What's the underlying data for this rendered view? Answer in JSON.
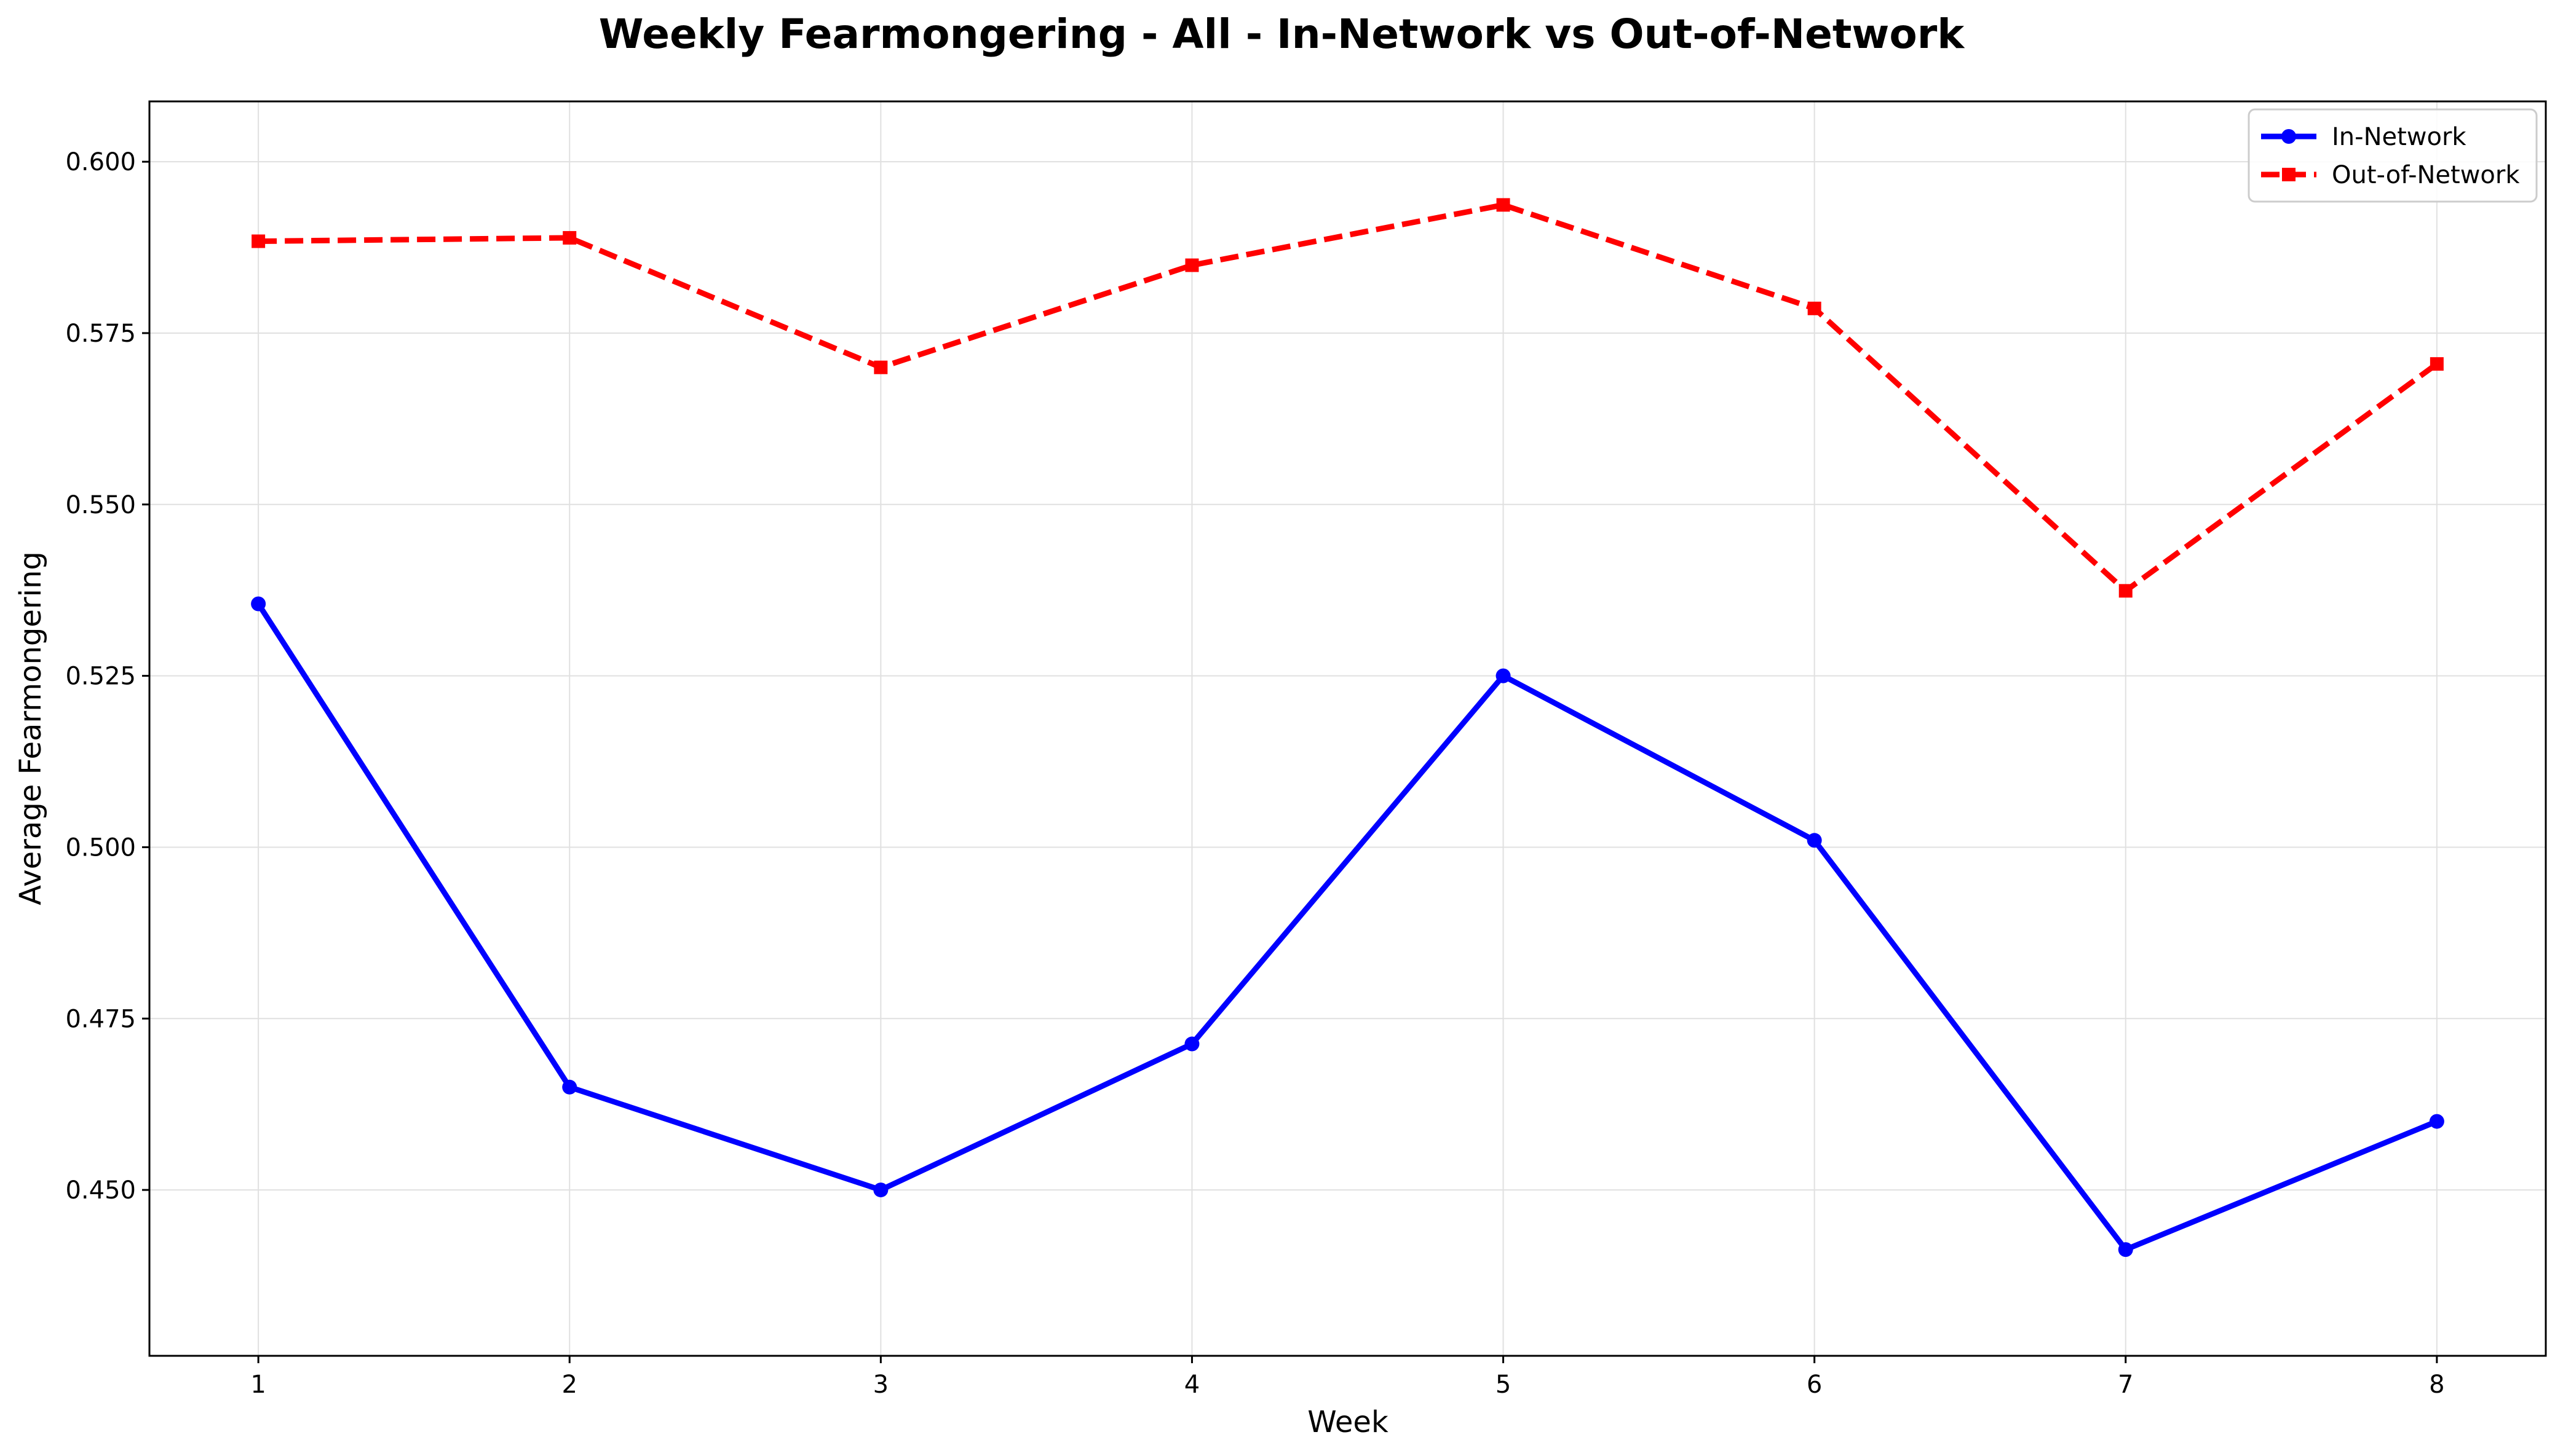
{
  "chart_data": {
    "type": "line",
    "title": "Weekly Fearmongering - All - In-Network vs Out-of-Network",
    "xlabel": "Week",
    "ylabel": "Average Fearmongering",
    "x": [
      1,
      2,
      3,
      4,
      5,
      6,
      7,
      8
    ],
    "x_ticks": [
      "1",
      "2",
      "3",
      "4",
      "5",
      "6",
      "7",
      "8"
    ],
    "xlim": [
      0.65,
      8.35
    ],
    "ylim": [
      0.4258,
      0.6088
    ],
    "y_ticks": [
      "0.450",
      "0.475",
      "0.500",
      "0.525",
      "0.550",
      "0.575",
      "0.600"
    ],
    "grid": true,
    "legend_position": "top-right",
    "series": [
      {
        "name": "In-Network",
        "color": "#0000ff",
        "line_style": "solid",
        "marker": "circle",
        "values": [
          0.5355,
          0.465,
          0.45,
          0.4713,
          0.525,
          0.501,
          0.4413,
          0.46
        ]
      },
      {
        "name": "Out-of-Network",
        "color": "#ff0000",
        "line_style": "dashed",
        "marker": "square",
        "values": [
          0.5884,
          0.5889,
          0.57,
          0.5849,
          0.5937,
          0.5786,
          0.5374,
          0.5705
        ]
      }
    ]
  }
}
